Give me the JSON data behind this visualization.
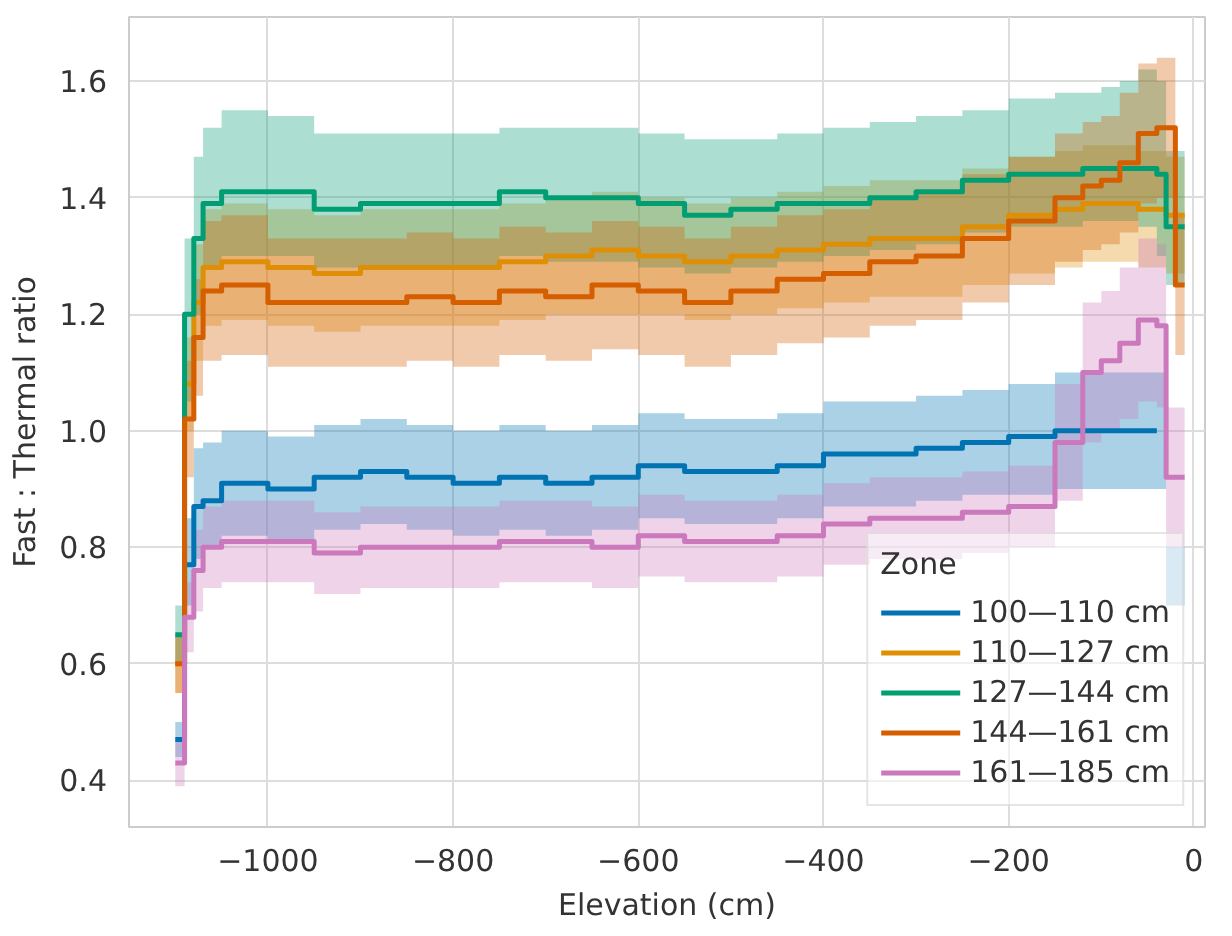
{
  "chart_data": {
    "type": "step",
    "xlabel": "Elevation (cm)",
    "ylabel": "Fast : Thermal ratio",
    "legend_title": "Zone",
    "x": [
      -1100,
      -1090,
      -1080,
      -1070,
      -1050,
      -1000,
      -950,
      -900,
      -850,
      -800,
      -750,
      -700,
      -650,
      -600,
      -550,
      -500,
      -450,
      -400,
      -350,
      -300,
      -250,
      -200,
      -150,
      -120,
      -100,
      -80,
      -60,
      -40,
      -30,
      -20,
      -10
    ],
    "xlim": [
      -1150,
      12
    ],
    "ylim": [
      0.32,
      1.71
    ],
    "xticks": [
      {
        "value": -1000,
        "label": "−1000"
      },
      {
        "value": -800,
        "label": "−800"
      },
      {
        "value": -600,
        "label": "−600"
      },
      {
        "value": -400,
        "label": "−400"
      },
      {
        "value": -200,
        "label": "−200"
      },
      0
    ],
    "yticks": [
      0.4,
      0.6,
      0.8,
      {
        "value": 1.0,
        "label": "1.0"
      },
      1.2,
      1.4,
      1.6
    ],
    "grid": true,
    "legend": "bottom right",
    "series": [
      {
        "name": "100—110 cm",
        "color": "#0173b2",
        "values": [
          0.47,
          0.77,
          0.87,
          0.88,
          0.91,
          0.9,
          0.92,
          0.93,
          0.92,
          0.91,
          0.92,
          0.91,
          0.92,
          0.94,
          0.93,
          0.93,
          0.94,
          0.96,
          0.96,
          0.97,
          0.98,
          0.99,
          1.0,
          1.0,
          1.0,
          1.0,
          1.0,
          1.0,
          null,
          null,
          null
        ],
        "lower": [
          0.44,
          0.7,
          0.78,
          0.8,
          0.82,
          0.81,
          0.83,
          0.84,
          0.83,
          0.82,
          0.83,
          0.82,
          0.83,
          0.85,
          0.84,
          0.84,
          0.85,
          0.87,
          0.87,
          0.88,
          0.89,
          0.89,
          0.9,
          0.9,
          0.9,
          0.9,
          0.9,
          0.9,
          0.7,
          0.7,
          0.7
        ],
        "upper": [
          0.5,
          0.85,
          0.97,
          0.98,
          1.0,
          0.99,
          1.01,
          1.02,
          1.01,
          1.0,
          1.01,
          1.0,
          1.01,
          1.03,
          1.02,
          1.02,
          1.03,
          1.05,
          1.05,
          1.06,
          1.07,
          1.08,
          1.1,
          1.1,
          1.1,
          1.1,
          1.1,
          1.1,
          0.8,
          0.8,
          0.8
        ]
      },
      {
        "name": "110—127 cm",
        "color": "#de8f05",
        "values": [
          0.6,
          1.08,
          1.22,
          1.28,
          1.29,
          1.28,
          1.27,
          1.28,
          1.28,
          1.28,
          1.29,
          1.3,
          1.31,
          1.3,
          1.29,
          1.3,
          1.31,
          1.32,
          1.33,
          1.33,
          1.35,
          1.37,
          1.38,
          1.39,
          1.39,
          1.39,
          1.38,
          1.38,
          1.37,
          1.37,
          1.37
        ],
        "lower": [
          0.55,
          1.0,
          1.12,
          1.18,
          1.19,
          1.18,
          1.17,
          1.18,
          1.18,
          1.18,
          1.19,
          1.2,
          1.2,
          1.2,
          1.19,
          1.2,
          1.21,
          1.22,
          1.23,
          1.23,
          1.25,
          1.27,
          1.28,
          1.29,
          1.29,
          1.29,
          1.28,
          1.28,
          1.27,
          1.27,
          1.27
        ],
        "upper": [
          0.65,
          1.16,
          1.32,
          1.38,
          1.39,
          1.38,
          1.37,
          1.38,
          1.38,
          1.38,
          1.39,
          1.4,
          1.41,
          1.4,
          1.39,
          1.4,
          1.41,
          1.42,
          1.43,
          1.43,
          1.45,
          1.47,
          1.48,
          1.49,
          1.49,
          1.49,
          1.48,
          1.48,
          1.47,
          1.47,
          1.47
        ]
      },
      {
        "name": "127—144 cm",
        "color": "#029e73",
        "values": [
          0.65,
          1.2,
          1.33,
          1.39,
          1.41,
          1.41,
          1.38,
          1.39,
          1.39,
          1.39,
          1.41,
          1.4,
          1.4,
          1.39,
          1.37,
          1.38,
          1.39,
          1.39,
          1.4,
          1.41,
          1.43,
          1.44,
          1.44,
          1.45,
          1.45,
          1.45,
          1.45,
          1.44,
          1.35,
          1.35,
          1.35
        ],
        "lower": [
          0.6,
          1.05,
          1.2,
          1.28,
          1.3,
          1.3,
          1.28,
          1.28,
          1.28,
          1.28,
          1.3,
          1.29,
          1.29,
          1.28,
          1.27,
          1.28,
          1.29,
          1.3,
          1.31,
          1.32,
          1.34,
          1.35,
          1.35,
          1.36,
          1.36,
          1.36,
          1.35,
          1.3,
          1.25,
          1.25,
          1.25
        ],
        "upper": [
          0.7,
          1.33,
          1.47,
          1.52,
          1.55,
          1.54,
          1.51,
          1.51,
          1.51,
          1.51,
          1.52,
          1.52,
          1.52,
          1.51,
          1.5,
          1.5,
          1.51,
          1.52,
          1.53,
          1.54,
          1.55,
          1.57,
          1.58,
          1.58,
          1.59,
          1.6,
          1.62,
          1.6,
          1.48,
          1.48,
          1.48
        ]
      },
      {
        "name": "144—161 cm",
        "color": "#d55e00",
        "values": [
          0.6,
          1.02,
          1.16,
          1.24,
          1.25,
          1.22,
          1.22,
          1.22,
          1.23,
          1.22,
          1.24,
          1.23,
          1.25,
          1.24,
          1.22,
          1.24,
          1.26,
          1.27,
          1.29,
          1.3,
          1.33,
          1.36,
          1.4,
          1.42,
          1.43,
          1.46,
          1.51,
          1.52,
          1.52,
          1.25,
          1.25
        ],
        "lower": [
          0.55,
          0.92,
          1.06,
          1.12,
          1.13,
          1.11,
          1.11,
          1.11,
          1.12,
          1.11,
          1.13,
          1.12,
          1.14,
          1.13,
          1.11,
          1.13,
          1.15,
          1.16,
          1.18,
          1.19,
          1.22,
          1.25,
          1.29,
          1.31,
          1.32,
          1.34,
          1.39,
          1.4,
          1.4,
          1.13,
          1.13
        ],
        "upper": [
          0.65,
          1.12,
          1.26,
          1.36,
          1.37,
          1.33,
          1.33,
          1.33,
          1.34,
          1.33,
          1.35,
          1.34,
          1.36,
          1.35,
          1.33,
          1.35,
          1.37,
          1.38,
          1.4,
          1.41,
          1.44,
          1.47,
          1.51,
          1.53,
          1.54,
          1.58,
          1.63,
          1.64,
          1.64,
          1.37,
          1.37
        ]
      },
      {
        "name": "161—185 cm",
        "color": "#cc78bc",
        "values": [
          0.43,
          0.68,
          0.76,
          0.8,
          0.81,
          0.81,
          0.79,
          0.8,
          0.8,
          0.8,
          0.81,
          0.81,
          0.8,
          0.82,
          0.81,
          0.81,
          0.82,
          0.84,
          0.85,
          0.85,
          0.86,
          0.87,
          0.98,
          1.1,
          1.12,
          1.15,
          1.19,
          1.18,
          0.92,
          0.92,
          0.92
        ],
        "lower": [
          0.39,
          0.62,
          0.69,
          0.73,
          0.74,
          0.74,
          0.72,
          0.73,
          0.73,
          0.73,
          0.74,
          0.74,
          0.73,
          0.75,
          0.74,
          0.74,
          0.75,
          0.77,
          0.78,
          0.78,
          0.79,
          0.8,
          0.88,
          0.98,
          1.0,
          1.02,
          1.05,
          1.04,
          0.8,
          0.8,
          0.8
        ],
        "upper": [
          0.47,
          0.74,
          0.83,
          0.87,
          0.88,
          0.88,
          0.86,
          0.87,
          0.87,
          0.87,
          0.88,
          0.88,
          0.87,
          0.89,
          0.88,
          0.88,
          0.89,
          0.91,
          0.92,
          0.92,
          0.93,
          0.94,
          1.08,
          1.22,
          1.24,
          1.28,
          1.33,
          1.32,
          1.04,
          1.04,
          1.04
        ]
      }
    ]
  }
}
